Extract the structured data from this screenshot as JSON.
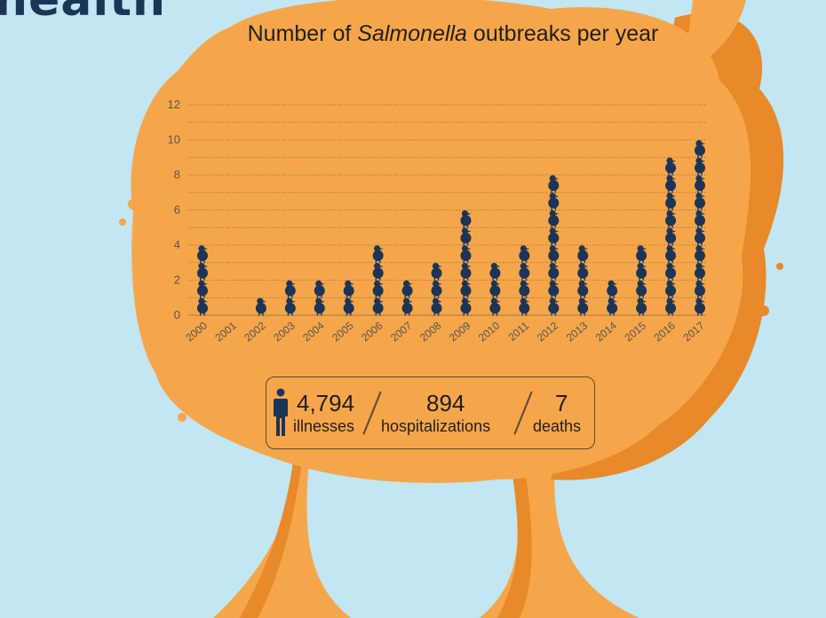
{
  "headline": "health",
  "chart_data": {
    "type": "bar",
    "title_prefix": "Number of ",
    "title_italic": "Salmonella",
    "title_suffix": " outbreaks per year",
    "categories": [
      "2000",
      "2001",
      "2002",
      "2003",
      "2004",
      "2005",
      "2006",
      "2007",
      "2008",
      "2009",
      "2010",
      "2011",
      "2012",
      "2013",
      "2014",
      "2015",
      "2016",
      "2017"
    ],
    "values": [
      4,
      0,
      1,
      2,
      2,
      2,
      4,
      2,
      3,
      6,
      3,
      4,
      8,
      4,
      2,
      4,
      9,
      10
    ],
    "yticks": [
      "0",
      "2",
      "4",
      "6",
      "8",
      "10",
      "12"
    ],
    "ylim": [
      0,
      12
    ],
    "grid": true,
    "mark": "chick-icon",
    "colors": {
      "mark": "#1c3557",
      "tree": "#f5a64a",
      "tree_shadow": "#e8892a",
      "sky": "#c2e6f2"
    }
  },
  "stats": {
    "icon": "person-icon",
    "illnesses_value": "4,794",
    "illnesses_label": "illnesses",
    "hospitalizations_value": "894",
    "hospitalizations_label": "hospitalizations",
    "deaths_value": "7",
    "deaths_label": "deaths"
  }
}
